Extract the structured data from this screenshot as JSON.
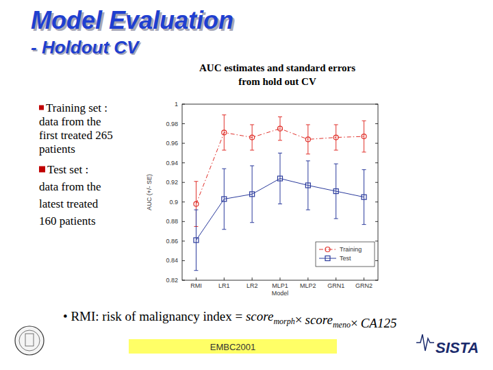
{
  "slide": {
    "title": "Model Evaluation",
    "subtitle": "- Holdout CV",
    "bullets": [
      {
        "lines": [
          "Training set :",
          "data from the",
          "first treated 265",
          "patients"
        ]
      },
      {
        "lines": [
          "Test set :",
          "data from the",
          "latest treated",
          "160 patients"
        ]
      }
    ],
    "footnote": {
      "lead": "• RMI: risk of malignancy index = ",
      "factors": [
        {
          "name": "score",
          "sub": "morph"
        },
        {
          "name": "score",
          "sub": "meno"
        },
        {
          "name": "CA125"
        }
      ],
      "times": "×"
    },
    "footer": "EMBC2001",
    "logo": "SISTA"
  },
  "chart_data": {
    "type": "line",
    "title": [
      "AUC estimates and standard errors",
      "from hold out CV"
    ],
    "x_label": "Model",
    "y_label": "AUC (+/- SE)",
    "categories": [
      "RMI",
      "LR1",
      "LR2",
      "MLP1",
      "MLP2",
      "GRN1",
      "GRN2"
    ],
    "series": [
      {
        "name": "Training",
        "color": "#e0302a",
        "marker": "circle",
        "line_style": "dashdot",
        "values": [
          0.898,
          0.971,
          0.966,
          0.975,
          0.964,
          0.966,
          0.967
        ],
        "errors": [
          0.023,
          0.018,
          0.013,
          0.012,
          0.015,
          0.013,
          0.016
        ]
      },
      {
        "name": "Test",
        "color": "#2a3a9c",
        "marker": "square",
        "line_style": "solid",
        "values": [
          0.861,
          0.903,
          0.908,
          0.924,
          0.917,
          0.911,
          0.905
        ],
        "errors": [
          0.031,
          0.031,
          0.029,
          0.026,
          0.025,
          0.028,
          0.028
        ]
      }
    ],
    "ylim": [
      0.82,
      1
    ],
    "yticks": [
      0.82,
      0.84,
      0.86,
      0.88,
      0.9,
      0.92,
      0.94,
      0.96,
      0.98,
      1
    ],
    "grid": false,
    "legend": "lower right"
  }
}
